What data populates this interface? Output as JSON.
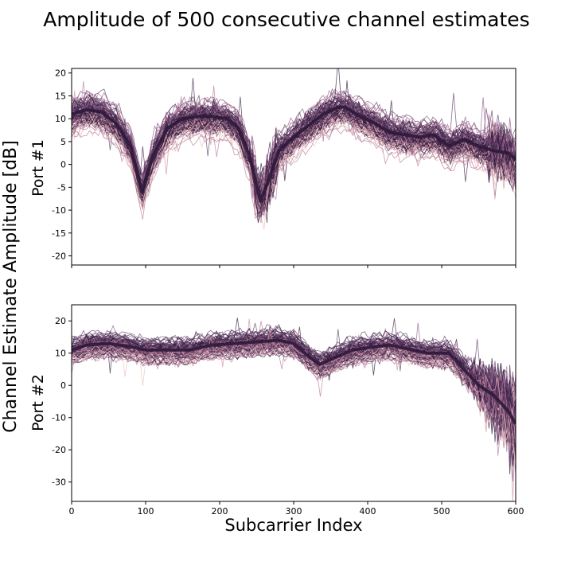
{
  "chart_data": {
    "title": "Amplitude of 500 consecutive channel estimates",
    "ylabel": "Channel Estimate Amplitude [dB]",
    "xlabel": "Subcarrier Index",
    "series_count": 500,
    "palette": [
      "#f0c9c6",
      "#d89fa8",
      "#b57a98",
      "#8e5a84",
      "#5e3a67",
      "#3b2148",
      "#2d1a3a"
    ],
    "panels": [
      {
        "type": "line",
        "row_label": "Port #1",
        "xlim": [
          0,
          600
        ],
        "ylim": [
          -22,
          21
        ],
        "xticks": [
          0,
          100,
          200,
          300,
          400,
          500,
          600
        ],
        "yticks": [
          -20,
          -15,
          -10,
          -5,
          0,
          5,
          10,
          15,
          20
        ],
        "show_x_tick_labels": false,
        "mean_profile": {
          "x": [
            0,
            20,
            40,
            60,
            80,
            95,
            110,
            130,
            150,
            170,
            190,
            210,
            225,
            240,
            255,
            265,
            280,
            300,
            320,
            340,
            360,
            370,
            390,
            410,
            430,
            450,
            470,
            490,
            510,
            530,
            550,
            570,
            590,
            600
          ],
          "y": [
            11,
            12,
            11.5,
            9,
            4,
            -6,
            2,
            8,
            10,
            10.5,
            10.5,
            10,
            8,
            2,
            -8,
            -4,
            3,
            6,
            8.5,
            11,
            12.5,
            12.5,
            10.5,
            9,
            7,
            6.5,
            6,
            6.5,
            4,
            5.5,
            4,
            3,
            2.5,
            1
          ]
        }
      },
      {
        "type": "line",
        "row_label": "Port #2",
        "xlim": [
          0,
          600
        ],
        "ylim": [
          -36,
          25
        ],
        "xticks": [
          0,
          100,
          200,
          300,
          400,
          500,
          600
        ],
        "yticks": [
          -30,
          -20,
          -10,
          0,
          10,
          20
        ],
        "show_x_tick_labels": true,
        "mean_profile": {
          "x": [
            0,
            20,
            50,
            80,
            100,
            130,
            160,
            190,
            220,
            250,
            280,
            300,
            320,
            335,
            350,
            380,
            410,
            430,
            450,
            480,
            510,
            530,
            550,
            570,
            590,
            600
          ],
          "y": [
            11,
            12.5,
            13,
            12,
            11,
            11,
            11,
            12.5,
            13,
            13.5,
            14,
            13,
            9,
            6.5,
            8,
            11,
            12,
            12.5,
            11.5,
            10,
            10,
            5,
            0,
            -3,
            -8,
            -12
          ]
        }
      }
    ]
  }
}
